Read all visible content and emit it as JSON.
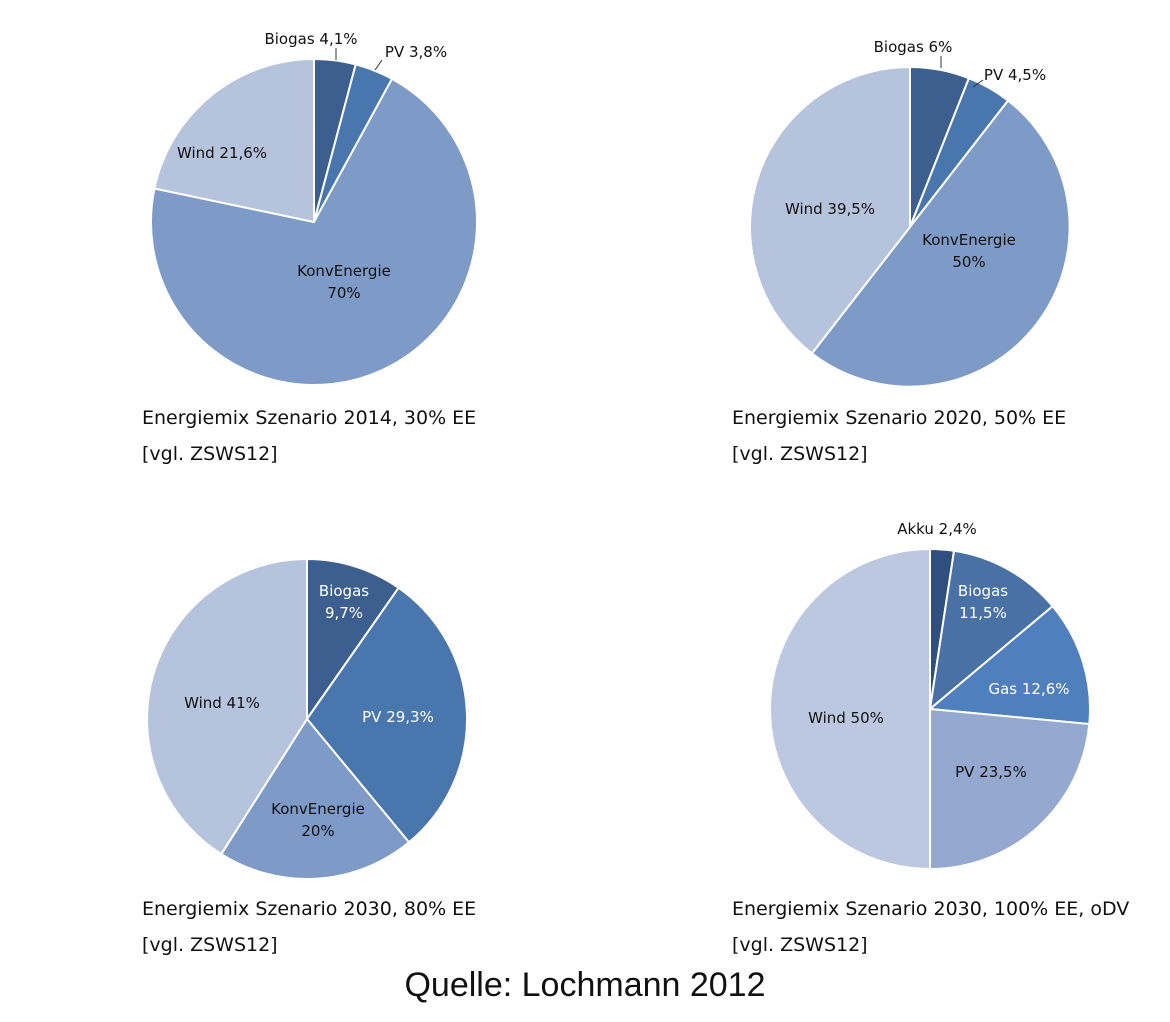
{
  "chart_data": [
    {
      "type": "pie",
      "title": "Energiemix Szenario 2014, 30% EE",
      "subtitle": "[vgl. ZSWS12]",
      "slices": [
        {
          "label": "Biogas",
          "value_text": "4,1%",
          "value": 4.1,
          "color": "#3d5f8f",
          "label_color": "#111111"
        },
        {
          "label": "PV",
          "value_text": "3,8%",
          "value": 3.8,
          "color": "#4876ad",
          "label_color": "#111111"
        },
        {
          "label": "KonvEnergie",
          "value_text": "70%",
          "value": 70,
          "color": "#7e9ac7",
          "label_color": "#111111"
        },
        {
          "label": "Wind",
          "value_text": "21,6%",
          "value": 21.6,
          "color": "#b5c3dc",
          "label_color": "#111111"
        }
      ]
    },
    {
      "type": "pie",
      "title": "Energiemix Szenario 2020, 50% EE",
      "subtitle": "[vgl. ZSWS12]",
      "slices": [
        {
          "label": "Biogas",
          "value_text": "6%",
          "value": 6,
          "color": "#3d5f8f",
          "label_color": "#111111"
        },
        {
          "label": "PV",
          "value_text": "4,5%",
          "value": 4.5,
          "color": "#4876ad",
          "label_color": "#111111"
        },
        {
          "label": "KonvEnergie",
          "value_text": "50%",
          "value": 50,
          "color": "#7e9ac7",
          "label_color": "#111111"
        },
        {
          "label": "Wind",
          "value_text": "39,5%",
          "value": 39.5,
          "color": "#b5c3dc",
          "label_color": "#111111"
        }
      ]
    },
    {
      "type": "pie",
      "title": "Energiemix Szenario 2030, 80% EE",
      "subtitle": "[vgl. ZSWS12]",
      "slices": [
        {
          "label": "Biogas",
          "value_text": "9,7%",
          "value": 9.7,
          "color": "#3d5f8f",
          "label_color": "#ffffff"
        },
        {
          "label": "PV",
          "value_text": "29,3%",
          "value": 29.3,
          "color": "#4876ad",
          "label_color": "#ffffff"
        },
        {
          "label": "KonvEnergie",
          "value_text": "20%",
          "value": 20,
          "color": "#7e9ac7",
          "label_color": "#111111"
        },
        {
          "label": "Wind",
          "value_text": "41%",
          "value": 41,
          "color": "#b5c3dc",
          "label_color": "#111111"
        }
      ]
    },
    {
      "type": "pie",
      "title": "Energiemix Szenario 2030, 100% EE, oDV",
      "subtitle": "[vgl. ZSWS12]",
      "slices": [
        {
          "label": "Akku",
          "value_text": "2,4%",
          "value": 2.4,
          "color": "#2f4f7f",
          "label_color": "#111111"
        },
        {
          "label": "Biogas",
          "value_text": "11,5%",
          "value": 11.5,
          "color": "#4a71a6",
          "label_color": "#ffffff"
        },
        {
          "label": "Gas",
          "value_text": "12,6%",
          "value": 12.6,
          "color": "#4f80bd",
          "label_color": "#ffffff"
        },
        {
          "label": "PV",
          "value_text": "23,5%",
          "value": 23.5,
          "color": "#95a8cf",
          "label_color": "#111111"
        },
        {
          "label": "Wind",
          "value_text": "50%",
          "value": 50,
          "color": "#bbc8df",
          "label_color": "#111111"
        }
      ]
    }
  ],
  "source": "Quelle: Lochmann 2012"
}
